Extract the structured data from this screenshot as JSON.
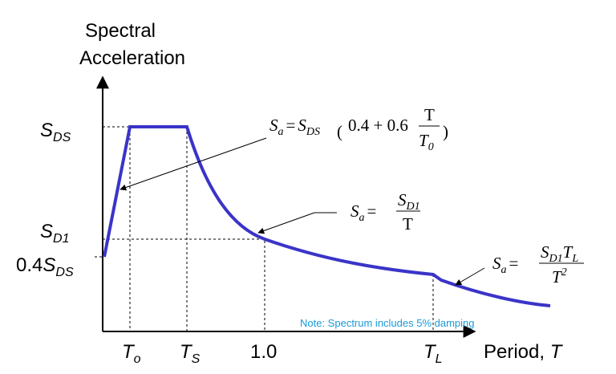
{
  "y_axis_label": [
    "Spectral",
    "Acceleration"
  ],
  "x_axis_label": {
    "text": "Period, ",
    "var": "T"
  },
  "y_labels": [
    {
      "base": "S",
      "sub": "DS"
    },
    {
      "base": "S",
      "sub": "D1"
    },
    {
      "prefix": "0.4",
      "base": "S",
      "sub": "DS"
    }
  ],
  "x_labels": [
    {
      "base": "T",
      "sub": "o"
    },
    {
      "base": "T",
      "sub": "S"
    },
    {
      "base": "1.0"
    },
    {
      "base": "T",
      "sub": "L"
    }
  ],
  "equations": [
    {
      "lhs": "S",
      "lhs_sub": "a",
      "eq": "=",
      "rhs": "S",
      "rhs_sub": "DS",
      "open": "(",
      "terms": "0.4 + 0.6",
      "num": "T",
      "den": "T",
      "den_sub": "0",
      "close": ")"
    },
    {
      "lhs": "S",
      "lhs_sub": "a",
      "eq": "=",
      "num": "S",
      "num_sub": "D1",
      "den": "T"
    },
    {
      "lhs": "S",
      "lhs_sub": "a",
      "eq": "=",
      "num": "S",
      "num_sub": "D1",
      "num2": "T",
      "num2_sub": "L",
      "den": "T",
      "den_sup": "2"
    }
  ],
  "note": "Note: Spectrum includes 5% damping"
}
